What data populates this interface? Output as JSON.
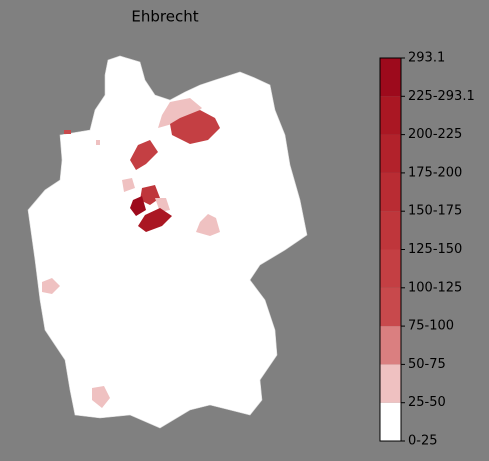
{
  "title": "Ehbrecht",
  "colorbar": {
    "labels": [
      "0-25",
      "25-50",
      "50-75",
      "75-100",
      "100-125",
      "125-150",
      "150-175",
      "175-200",
      "200-225",
      "225-293.1",
      "293.1"
    ],
    "colors": [
      "#ffffff",
      "#efc1c1",
      "#da7f80",
      "#c8494c",
      "#c43f43",
      "#bf363b",
      "#b92c33",
      "#b2222b",
      "#aa1723",
      "#9d0a1c"
    ]
  }
}
